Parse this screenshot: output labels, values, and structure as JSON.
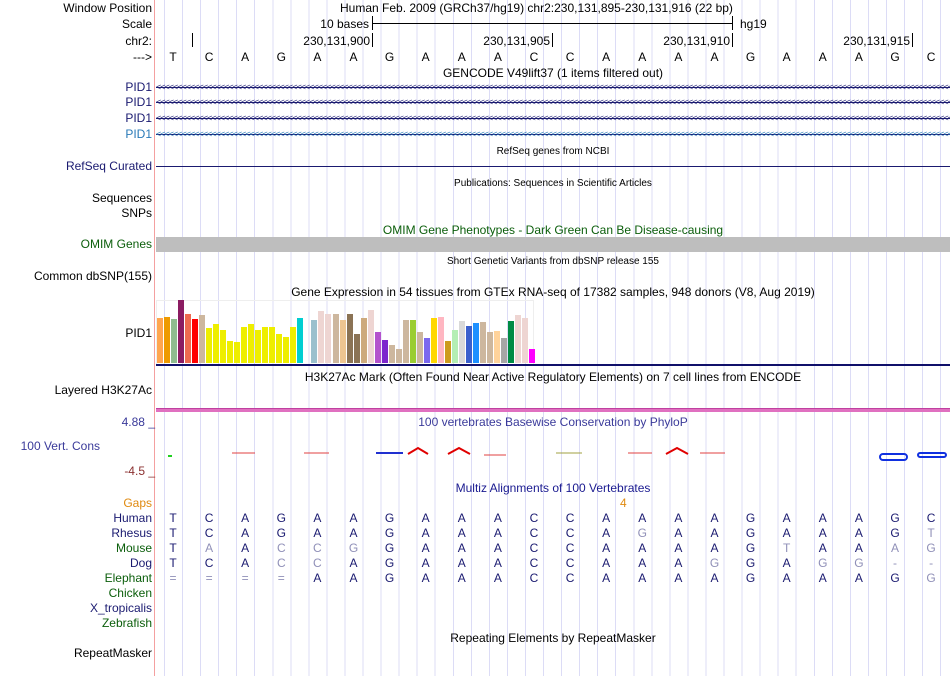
{
  "header": {
    "window_position_label": "Window Position",
    "assembly_position": "Human Feb. 2009 (GRCh37/hg19)   chr2:230,131,895-230,131,916 (22 bp)",
    "scale_label": "Scale",
    "scale_bar_text": "10 bases",
    "scale_db": "hg19",
    "chrom_label": "chr2:",
    "ruler_ticks": [
      "230,131,900",
      "230,131,905",
      "230,131,910",
      "230,131,915"
    ],
    "strand_label": "--->",
    "sequence": "TCAGAAGAAACCAAAAGAAAGC"
  },
  "gencode": {
    "title": "GENCODE V49lift37 (1 items filtered out)",
    "genes": [
      "PID1",
      "PID1",
      "PID1",
      "PID1"
    ]
  },
  "refseq": {
    "title": "RefSeq genes from NCBI",
    "label": "RefSeq Curated"
  },
  "publications": {
    "title": "Publications: Sequences in Scientific Articles",
    "labels": [
      "Sequences",
      "SNPs"
    ]
  },
  "omim": {
    "title": "OMIM Gene Phenotypes - Dark Green Can Be Disease-causing",
    "label": "OMIM Genes"
  },
  "dbsnp": {
    "title": "Short Genetic Variants from dbSNP release 155",
    "label": "Common dbSNP(155)"
  },
  "gtex": {
    "title": "Gene Expression in 54 tissues from GTEx RNA-seq of 17382 samples, 948 donors (V8, Aug 2019)",
    "label": "PID1",
    "chart_data": {
      "type": "bar",
      "title": "GTEx PID1 expression (relative)",
      "values": [
        71,
        73,
        70,
        100,
        78,
        70,
        76,
        55,
        62,
        52,
        35,
        33,
        57,
        62,
        52,
        57,
        57,
        46,
        41,
        57,
        71,
        0,
        68,
        82,
        78,
        78,
        68,
        78,
        46,
        71,
        84,
        49,
        36,
        28,
        22,
        68,
        68,
        49,
        39,
        71,
        73,
        35,
        52,
        66,
        59,
        63,
        65,
        49,
        51,
        39,
        66,
        76,
        71,
        22
      ],
      "colors": [
        "#FFA54F",
        "#EE9A00",
        "#8FBC8F",
        "#8B1C62",
        "#EE6A50",
        "#FF0000",
        "#CDB79E",
        "#EEEE00",
        "#EEEE00",
        "#EEEE00",
        "#EEEE00",
        "#EEEE00",
        "#EEEE00",
        "#EEEE00",
        "#EEEE00",
        "#EEEE00",
        "#EEEE00",
        "#EEEE00",
        "#EEEE00",
        "#EEEE00",
        "#00CED1",
        "#FFFFFF",
        "#9AC0CD",
        "#EED5D2",
        "#EED5D2",
        "#CDB79E",
        "#EEC591",
        "#8B7355",
        "#8B7355",
        "#CDAA7D",
        "#EED5D2",
        "#B452CD",
        "#7D26CD",
        "#CDB79E",
        "#CDB79E",
        "#CDB79E",
        "#9ACD32",
        "#CDB79E",
        "#7B68EE",
        "#FFD700",
        "#FFB6C1",
        "#CD9B1D",
        "#B4EEB4",
        "#D9D9D9",
        "#3A5FCD",
        "#1E90FF",
        "#CDB79E",
        "#CDB79E",
        "#FFD39B",
        "#A6A6A6",
        "#008B45",
        "#EED5D2",
        "#EED5D2",
        "#FF00FF"
      ],
      "ylim": [
        0,
        100
      ]
    }
  },
  "h3k27ac": {
    "title": "H3K27Ac Mark (Often Found Near Active Regulatory Elements) on 7 cell lines from ENCODE",
    "label": "Layered H3K27Ac"
  },
  "phylop": {
    "title": "100 vertebrates Basewise Conservation by PhyloP",
    "label": "100 Vert. Cons",
    "max": "4.88 _",
    "min": "-4.5 _"
  },
  "multiz": {
    "title": "Multiz Alignments of 100 Vertebrates",
    "gaps_label": "Gaps",
    "gap_count": "4",
    "species": [
      {
        "name": "Human",
        "color": "#1a1a70",
        "seq": "TCAGAAGAAACCAAAAGAAAGC",
        "mismatch": "0000000000000000000000"
      },
      {
        "name": "Rhesus",
        "color": "#1a1a70",
        "seq": "TCAGAAGAAACCAGAAGAAAGT",
        "mismatch": "0000000000000100000001"
      },
      {
        "name": "Mouse",
        "color": "#0b5e0b",
        "seq": "TAACCGGAAACCAAAAGTAAAG",
        "mismatch": "0101110000000000010011"
      },
      {
        "name": "Dog",
        "color": "#1a1a70",
        "seq": "TCACCAGAAACCAAAGGAGG--",
        "mismatch": "0001100000000001001111"
      },
      {
        "name": "Elephant",
        "color": "#0b5e0b",
        "seq": "====AAGAAACCAAAAGAAAGG",
        "mismatch": "1111000000000000000001"
      },
      {
        "name": "Chicken",
        "color": "#0b5e0b",
        "seq": "",
        "mismatch": ""
      },
      {
        "name": "X_tropicalis",
        "color": "#1a1a70",
        "seq": "",
        "mismatch": ""
      },
      {
        "name": "Zebrafish",
        "color": "#0b5e0b",
        "seq": "",
        "mismatch": ""
      }
    ]
  },
  "repeatmasker": {
    "title": "Repeating Elements by RepeatMasker",
    "label": "RepeatMasker"
  }
}
